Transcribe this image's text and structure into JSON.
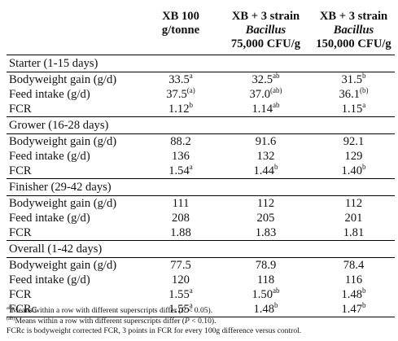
{
  "header": {
    "col1": [
      "XB 100",
      "g/tonne"
    ],
    "col2": [
      "XB + 3 strain",
      "Bacillus",
      "75,000 CFU/g"
    ],
    "col3": [
      "XB + 3 strain",
      "Bacillus",
      "150,000 CFU/g"
    ]
  },
  "sections": [
    {
      "title": "Starter (1-15 days)",
      "rows": [
        {
          "label": "Bodyweight gain (g/d)",
          "cells": [
            {
              "v": "33.5",
              "s": "a"
            },
            {
              "v": "32.5",
              "s": "ab"
            },
            {
              "v": "31.5",
              "s": "b"
            }
          ]
        },
        {
          "label": "Feed intake (g/d)",
          "cells": [
            {
              "v": "37.5",
              "s": "(a)"
            },
            {
              "v": "37.0",
              "s": "(ab)"
            },
            {
              "v": "36.1",
              "s": "(b)"
            }
          ]
        },
        {
          "label": "FCR",
          "cells": [
            {
              "v": "1.12",
              "s": "b"
            },
            {
              "v": "1.14",
              "s": "ab"
            },
            {
              "v": "1.15",
              "s": "a"
            }
          ]
        }
      ]
    },
    {
      "title": "Grower (16-28 days)",
      "rows": [
        {
          "label": "Bodyweight gain (g/d)",
          "cells": [
            {
              "v": "88.2",
              "s": ""
            },
            {
              "v": "91.6",
              "s": ""
            },
            {
              "v": "92.1",
              "s": ""
            }
          ]
        },
        {
          "label": "Feed intake (g/d)",
          "cells": [
            {
              "v": "136",
              "s": ""
            },
            {
              "v": "132",
              "s": ""
            },
            {
              "v": "129",
              "s": ""
            }
          ]
        },
        {
          "label": "FCR",
          "cells": [
            {
              "v": "1.54",
              "s": "a"
            },
            {
              "v": "1.44",
              "s": "b"
            },
            {
              "v": "1.40",
              "s": "b"
            }
          ]
        }
      ]
    },
    {
      "title": "Finisher (29-42 days)",
      "rows": [
        {
          "label": "Bodyweight gain (g/d)",
          "cells": [
            {
              "v": "111",
              "s": ""
            },
            {
              "v": "112",
              "s": ""
            },
            {
              "v": "112",
              "s": ""
            }
          ]
        },
        {
          "label": "Feed intake (g/d)",
          "cells": [
            {
              "v": "208",
              "s": ""
            },
            {
              "v": "205",
              "s": ""
            },
            {
              "v": "201",
              "s": ""
            }
          ]
        },
        {
          "label": "FCR",
          "cells": [
            {
              "v": "1.88",
              "s": ""
            },
            {
              "v": "1.83",
              "s": ""
            },
            {
              "v": "1.81",
              "s": ""
            }
          ]
        }
      ]
    },
    {
      "title": "Overall (1-42 days)",
      "rows": [
        {
          "label": "Bodyweight gain (g/d)",
          "cells": [
            {
              "v": "77.5",
              "s": ""
            },
            {
              "v": "78.9",
              "s": ""
            },
            {
              "v": "78.4",
              "s": ""
            }
          ]
        },
        {
          "label": "Feed intake (g/d)",
          "cells": [
            {
              "v": "120",
              "s": ""
            },
            {
              "v": "118",
              "s": ""
            },
            {
              "v": "116",
              "s": ""
            }
          ]
        },
        {
          "label": "FCR",
          "cells": [
            {
              "v": "1.55",
              "s": "a"
            },
            {
              "v": "1.50",
              "s": "ab"
            },
            {
              "v": "1.48",
              "s": "b"
            }
          ]
        },
        {
          "label": "FCRc",
          "cells": [
            {
              "v": "1.55",
              "s": "a"
            },
            {
              "v": "1.48",
              "s": "b"
            },
            {
              "v": "1.47",
              "s": "b"
            }
          ]
        }
      ]
    }
  ],
  "footnotes": {
    "note1": {
      "mark": "ab",
      "pre": "Means within a row with different superscripts differ (",
      "p": "P",
      "post": " < 0.05)."
    },
    "note2": {
      "mark": "(ab)",
      "pre": "Means within a row with different superscripts differ (",
      "p": "P",
      "post": " < 0.10)."
    },
    "note3": "FCRc is bodyweight corrected FCR, 3 points in FCR for every 100g difference versus control."
  }
}
